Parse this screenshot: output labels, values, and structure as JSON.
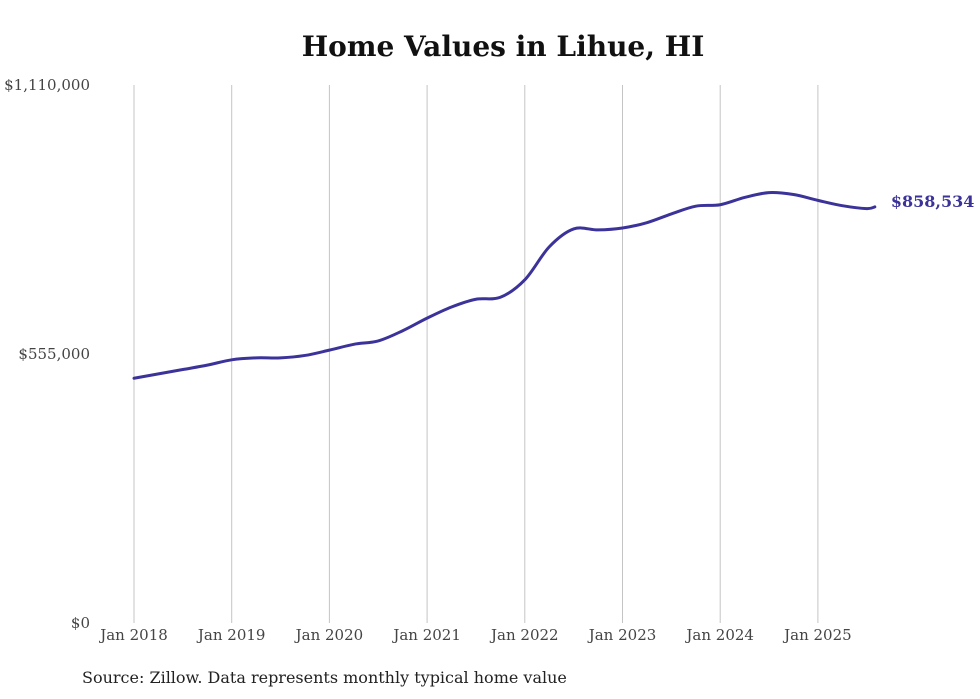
{
  "chart_data": {
    "type": "line",
    "title": "Home Values in Lihue, HI",
    "source": "Source: Zillow. Data represents monthly typical home value",
    "xlabel": "",
    "ylabel": "",
    "ylim": [
      0,
      1110000
    ],
    "xlim": [
      2018.0,
      2025.583
    ],
    "y_ticks": [
      {
        "value": 0,
        "label": "$0"
      },
      {
        "value": 555000,
        "label": "$555,000"
      },
      {
        "value": 1110000,
        "label": "$1,110,000"
      }
    ],
    "x_ticks": [
      {
        "value": 2018,
        "label": "Jan 2018"
      },
      {
        "value": 2019,
        "label": "Jan 2019"
      },
      {
        "value": 2020,
        "label": "Jan 2020"
      },
      {
        "value": 2021,
        "label": "Jan 2021"
      },
      {
        "value": 2022,
        "label": "Jan 2022"
      },
      {
        "value": 2023,
        "label": "Jan 2023"
      },
      {
        "value": 2024,
        "label": "Jan 2024"
      },
      {
        "value": 2025,
        "label": "Jan 2025"
      }
    ],
    "grid": "vertical",
    "series": [
      {
        "name": "Typical home value",
        "color": "#3b3399",
        "end_label": "$858,534",
        "x": [
          2018.0,
          2018.25,
          2018.5,
          2018.75,
          2019.0,
          2019.25,
          2019.5,
          2019.75,
          2020.0,
          2020.25,
          2020.5,
          2020.75,
          2021.0,
          2021.25,
          2021.5,
          2021.75,
          2022.0,
          2022.25,
          2022.5,
          2022.75,
          2023.0,
          2023.25,
          2023.5,
          2023.75,
          2024.0,
          2024.25,
          2024.5,
          2024.75,
          2025.0,
          2025.25,
          2025.5,
          2025.583
        ],
        "y": [
          505000,
          514000,
          523000,
          532000,
          543000,
          547000,
          547000,
          552000,
          563000,
          575000,
          582000,
          603000,
          629000,
          652000,
          668000,
          672000,
          708000,
          776000,
          813000,
          811000,
          815000,
          826000,
          844000,
          860000,
          863000,
          878000,
          888000,
          884000,
          872000,
          861000,
          855000,
          858534
        ]
      }
    ]
  }
}
